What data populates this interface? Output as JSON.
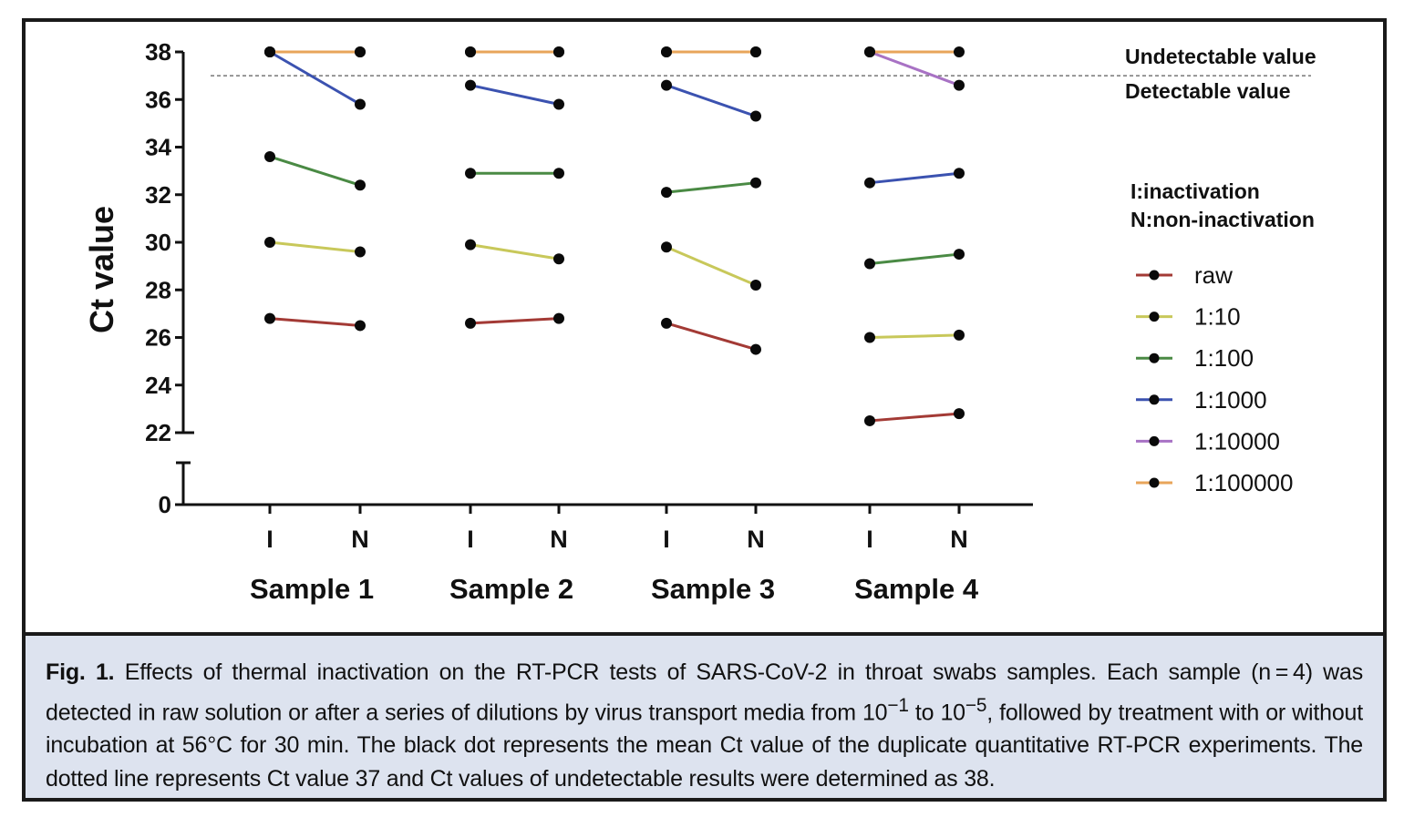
{
  "chart_data": {
    "type": "line",
    "ylabel": "Ct value",
    "yticks_upper": [
      22,
      24,
      26,
      28,
      30,
      32,
      34,
      36,
      38
    ],
    "ytick_lower": 0,
    "ylim": [
      22,
      38
    ],
    "axis_break": true,
    "x_positions": [
      "I",
      "N"
    ],
    "samples": [
      "Sample 1",
      "Sample 2",
      "Sample 3",
      "Sample 4"
    ],
    "threshold": {
      "value": 37,
      "style": "dotted",
      "label_above": "Undetectable value",
      "label_below": "Detectable value"
    },
    "abbreviations": [
      "I:inactivation",
      "N:non-inactivation"
    ],
    "series": [
      {
        "name": "raw",
        "color": "#a33a35",
        "values": [
          [
            26.8,
            26.5
          ],
          [
            26.6,
            26.8
          ],
          [
            26.6,
            25.5
          ],
          [
            22.5,
            22.8
          ]
        ]
      },
      {
        "name": "1:10",
        "color": "#c8c85a",
        "values": [
          [
            30.0,
            29.6
          ],
          [
            29.9,
            29.3
          ],
          [
            29.8,
            28.2
          ],
          [
            26.0,
            26.1
          ]
        ]
      },
      {
        "name": "1:100",
        "color": "#4a8a44",
        "values": [
          [
            33.6,
            32.4
          ],
          [
            32.9,
            32.9
          ],
          [
            32.1,
            32.5
          ],
          [
            29.1,
            29.5
          ]
        ]
      },
      {
        "name": "1:1000",
        "color": "#3b52b0",
        "values": [
          [
            38.0,
            35.8
          ],
          [
            36.6,
            35.8
          ],
          [
            36.6,
            35.3
          ],
          [
            32.5,
            32.9
          ]
        ]
      },
      {
        "name": "1:10000",
        "color": "#a872c4",
        "values": [
          [
            38.0,
            38.0
          ],
          [
            38.0,
            38.0
          ],
          [
            38.0,
            38.0
          ],
          [
            38.0,
            36.6
          ]
        ]
      },
      {
        "name": "1:100000",
        "color": "#e8a55a",
        "values": [
          [
            38.0,
            38.0
          ],
          [
            38.0,
            38.0
          ],
          [
            38.0,
            38.0
          ],
          [
            38.0,
            38.0
          ]
        ]
      }
    ],
    "marker": "black dot"
  },
  "caption": {
    "label": "Fig. 1.",
    "part1": "Effects of thermal inactivation on the RT-PCR tests of SARS-CoV-2 in throat swabs samples. Each sample (n = 4) was detected in raw solution or after a series of dilutions by virus transport media from 10",
    "sup1": "−1",
    "part2": " to 10",
    "sup2": "−5",
    "part3": ", followed by treatment with or without incubation at 56°C for 30 min. The black dot represents the mean Ct value of the duplicate quantitative RT-PCR experiments. The dotted line represents Ct value 37 and Ct values of undetectable results were determined as 38."
  }
}
